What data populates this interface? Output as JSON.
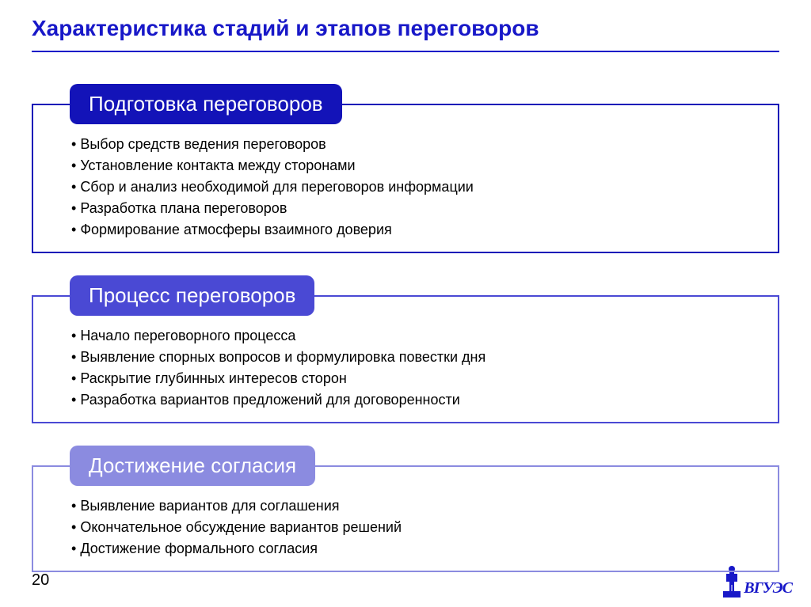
{
  "title": "Характеристика стадий и этапов переговоров",
  "title_color": "#1818c8",
  "underline_color": "#1818c8",
  "stages": [
    {
      "header": "Подготовка переговоров",
      "header_bg": "#1313b8",
      "border_color": "#1313b8",
      "items": [
        "Выбор средств ведения переговоров",
        "Установление контакта между сторонами",
        "Сбор и анализ необходимой для переговоров информации",
        "Разработка плана переговоров",
        "Формирование атмосферы взаимного доверия"
      ]
    },
    {
      "header": "Процесс переговоров",
      "header_bg": "#4a49d4",
      "border_color": "#4a49d4",
      "items": [
        "Начало переговорного процесса",
        "Выявление спорных вопросов и формулировка повестки дня",
        "Раскрытие глубинных интересов сторон",
        "Разработка вариантов предложений для договоренности"
      ]
    },
    {
      "header": "Достижение согласия",
      "header_bg": "#8b8be0",
      "border_color": "#8b8be0",
      "items": [
        "Выявление вариантов для соглашения",
        "Окончательное обсуждение вариантов решений",
        "Достижение формального согласия"
      ]
    }
  ],
  "page_number": "20",
  "logo_text": "ВГУЭС",
  "logo_color": "#1818c8"
}
